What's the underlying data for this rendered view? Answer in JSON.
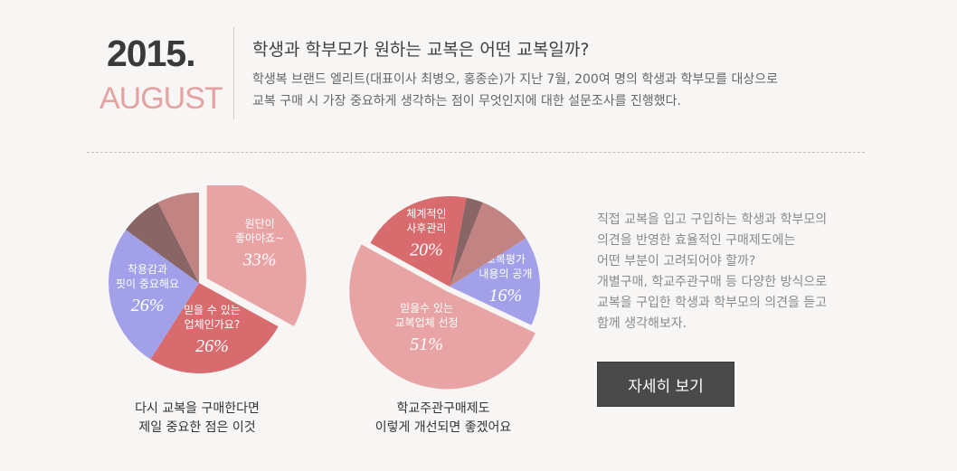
{
  "header": {
    "year": "2015.",
    "month": "AUGUST",
    "title": "학생과 학부모가 원하는 교복은 어떤 교복일까?",
    "desc_line1": "학생복 브랜드 엘리트(대표이사 최병오, 홍종순)가 지난 7월, 200여 명의 학생과 학부모를 대상으로",
    "desc_line2": "교복 구매 시 가장 중요하게 생각하는 점이 무엇인지에 대한 설문조사를 진행했다."
  },
  "chart_data": [
    {
      "type": "pie",
      "caption_line1": "다시 교복을 구매한다면",
      "caption_line2": "제일 중요한 점은 이것",
      "slices": [
        {
          "label_line1": "원단이",
          "label_line2": "좋아야죠~",
          "value": 33,
          "value_label": "33%",
          "color": "#e8a4a4"
        },
        {
          "label_line1": "믿을 수 있는",
          "label_line2": "업체인가요?",
          "value": 26,
          "value_label": "26%",
          "color": "#d86b6e"
        },
        {
          "label_line1": "착용감과",
          "label_line2": "핏이 중요해요",
          "value": 26,
          "value_label": "26%",
          "color": "#a3a0ea"
        },
        {
          "label_line1": "",
          "label_line2": "",
          "value": 7.5,
          "value_label": "",
          "color": "#8a6565"
        },
        {
          "label_line1": "",
          "label_line2": "",
          "value": 7.5,
          "value_label": "",
          "color": "#c28383"
        }
      ]
    },
    {
      "type": "pie",
      "caption_line1": "학교주관구매제도",
      "caption_line2": "이렇게 개선되면 좋겠어요",
      "slices": [
        {
          "label_line1": "교복평가",
          "label_line2": "내용의 공개",
          "value": 16,
          "value_label": "16%",
          "color": "#a3a0ea"
        },
        {
          "label_line1": "믿을수 있는",
          "label_line2": "교복업체 선정",
          "value": 51,
          "value_label": "51%",
          "color": "#e8a4a4"
        },
        {
          "label_line1": "체계적인",
          "label_line2": "사후관리",
          "value": 20,
          "value_label": "20%",
          "color": "#d86b6e"
        },
        {
          "label_line1": "",
          "label_line2": "",
          "value": 3,
          "value_label": "",
          "color": "#8a6565"
        },
        {
          "label_line1": "",
          "label_line2": "",
          "value": 10,
          "value_label": "",
          "color": "#c28383"
        }
      ]
    }
  ],
  "side": {
    "lines": [
      "직접 교복을 입고 구입하는 학생과 학부모의",
      "의견을 반영한 효율적인 구매제도에는",
      "어떤 부분이 고려되어야 할까?",
      "개별구매, 학교주관구매 등 다양한 방식으로",
      "교복을 구입한 학생과 학부모의 의견을 듣고",
      "함께 생각해보자."
    ],
    "button_label": "자세히 보기"
  }
}
